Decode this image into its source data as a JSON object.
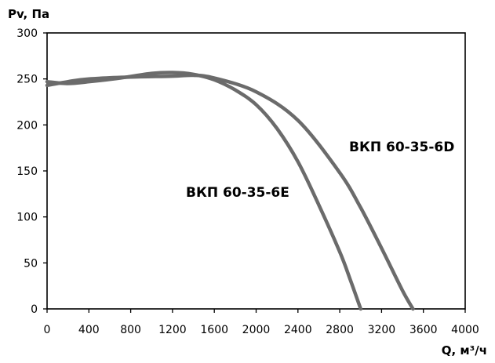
{
  "chart_data": {
    "type": "line",
    "title": "",
    "ylabel": "Pv, Па",
    "xlabel": "Q, м³/ч",
    "xlim": [
      0,
      4000
    ],
    "ylim": [
      0,
      300
    ],
    "xticks": [
      0,
      400,
      800,
      1200,
      1600,
      2000,
      2400,
      2800,
      3200,
      3600,
      4000
    ],
    "yticks": [
      0,
      50,
      100,
      150,
      200,
      250,
      300
    ],
    "grid": false,
    "series": [
      {
        "name": "ВКП 60-35-6E",
        "color": "#6b6b6b",
        "x": [
          0,
          200,
          400,
          700,
          1000,
          1200,
          1400,
          1600,
          1800,
          2000,
          2200,
          2400,
          2600,
          2800,
          2900,
          3000
        ],
        "y": [
          247,
          245,
          247,
          251,
          256,
          257,
          255,
          249,
          238,
          222,
          196,
          160,
          113,
          62,
          32,
          0
        ]
      },
      {
        "name": "ВКП 60-35-6D",
        "color": "#6b6b6b",
        "x": [
          0,
          200,
          400,
          800,
          1200,
          1400,
          1600,
          2000,
          2400,
          2800,
          3000,
          3200,
          3400,
          3500
        ],
        "y": [
          243,
          247,
          250,
          252,
          253,
          254,
          251,
          236,
          205,
          148,
          110,
          66,
          20,
          0
        ]
      }
    ]
  }
}
